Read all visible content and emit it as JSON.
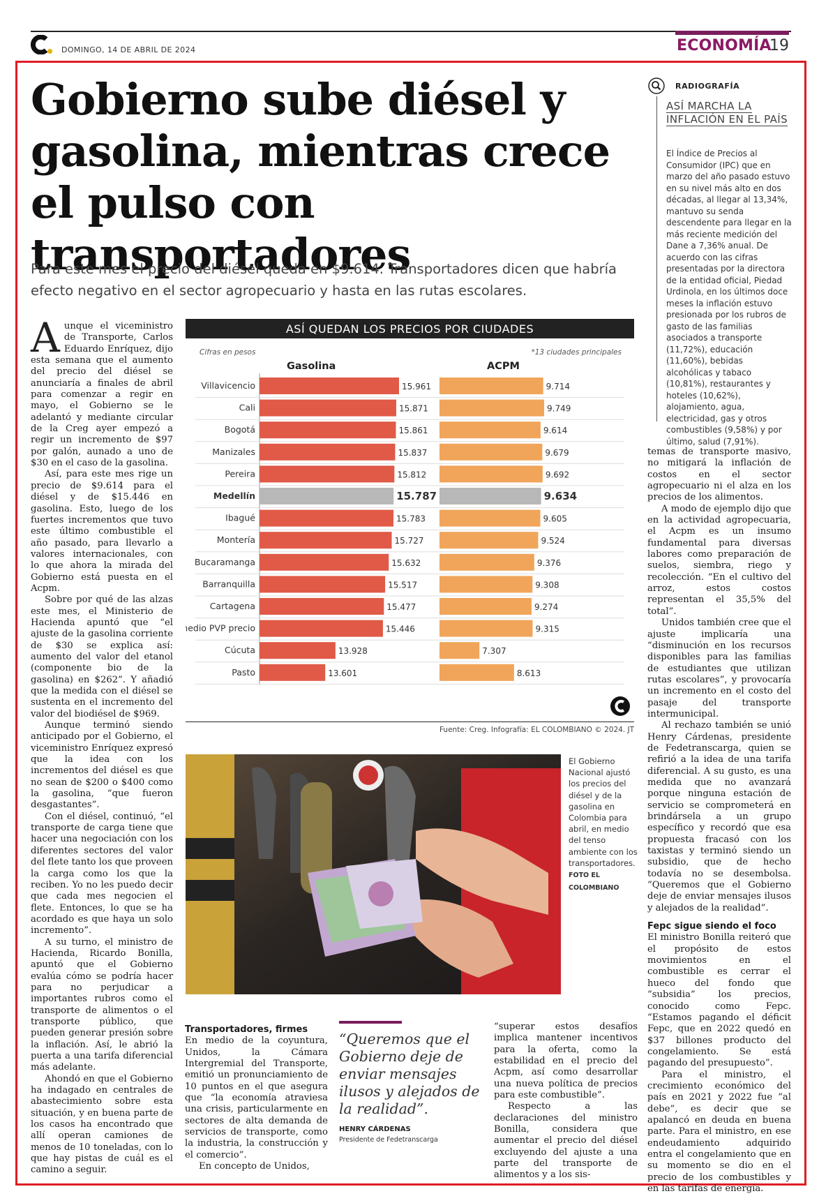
{
  "header": {
    "date": "DOMINGO, 14 DE ABRIL DE 2024",
    "section": "ECONOMÍA",
    "page": "19",
    "brand_color": "#8b1a63"
  },
  "article": {
    "headline": "Gobierno sube diésel y gasolina, mientras crece el pulso con transportadores",
    "deck": "Para este mes el precio del diésel queda en $9.614. Transportadores dicen que habría efecto negativo en el sector agropecuario y hasta en las rutas escolares.",
    "col1": {
      "dropcap": "A",
      "p1": "unque el viceministro de Transporte, Carlos Eduardo Enríquez, dijo esta semana que el aumento del precio del diésel se anunciaría a finales de abril para comenzar a regir en mayo, el Gobierno se le adelantó y mediante circular de la Creg ayer empezó a regir un incremento de $97 por galón, aunado a uno de $30 en el caso de la gasolina.",
      "p2": "Así, para este mes rige un precio de $9.614 para el diésel y de $15.446 en gasolina. Esto, luego de los fuertes incrementos que tuvo este último combustible el año pasado, para llevarlo a valores internacionales, con lo que ahora la mirada del Gobierno está puesta en el Acpm.",
      "p3": "Sobre por qué de las alzas este mes, el Ministerio de Hacienda apuntó que “el ajuste de la gasolina corriente de $30 se explica así: aumento del valor del etanol (componente bio de la gasolina) en $262”. Y añadió que la medida con el diésel se sustenta en el incremento del valor del biodiésel de $969.",
      "p4": "Aunque terminó siendo anticipado por el Gobierno, el viceministro Enríquez expresó que la idea con los incrementos del diésel es que no sean de $200 o $400 como la gasolina, “que fueron desgastantes”.",
      "p5": "Con el diésel, continuó, “el transporte de carga tiene que hacer una negociación con los diferentes sectores del valor del flete tanto los que proveen la carga como los que la reciben. Yo no les puedo decir que cada mes negocien el flete. Entonces, lo que se ha acordado es que haya un solo incremento”.",
      "p6": "A su turno, el ministro de Hacienda, Ricardo Bonilla, apuntó que el Gobierno evalúa cómo se podría hacer para no perjudicar a importantes rubros como el transporte de alimentos o el transporte público, que pueden generar presión sobre la inflación. Así, le abrió la puerta a una tarifa diferencial más adelante.",
      "p7": "Ahondó en que el Gobierno ha indagado en centrales de abastecimiento sobre esta situación, y en buena parte de los casos ha encontrado que allí operan camiones de menos de 10 toneladas, con lo que hay pistas de cuál es el camino a seguir."
    },
    "col2": {
      "subhead": "Transportadores, firmes",
      "p1": "En medio de la coyuntura, Unidos, la Cámara Intergremial del Transporte, emitió un pronunciamiento de 10 puntos en el que asegura que “la economía atraviesa una crisis, particularmente en sectores de alta demanda de servicios de transporte, como la industria, la construcción y el comercio”.",
      "p2": "En concepto de Unidos,"
    },
    "col3": {
      "p1": "“superar estos desafíos implica mantener incentivos para la oferta, como la estabilidad en el precio del Acpm, así como desarrollar una nueva política de precios para este combustible”.",
      "p2": "Respecto a las declaraciones del ministro Bonilla, considera que aumentar el precio del diésel excluyendo del ajuste a una parte del transporte de alimentos y a los sis-"
    },
    "col4": {
      "p1": "temas de transporte masivo, no mitigará la inflación de costos en el sector agropecuario ni el alza en los precios de los alimentos.",
      "p2": "A modo de ejemplo dijo que en la actividad agropecuaria, el Acpm es un insumo fundamental para diversas labores como preparación de suelos, siembra, riego y recolección. “En el cultivo del arroz, estos costos representan el 35,5% del total”.",
      "p3": "Unidos también cree que el ajuste implicaría una “disminución en los recursos disponibles para las familias de estudiantes que utilizan rutas escolares”, y provocaría un incremento en el costo del pasaje del transporte intermunicipal.",
      "p4": "Al rechazo también se unió Henry Cárdenas, presidente de Fedetranscarga, quien se refirió a la idea de una tarifa diferencial. A su gusto, es una medida que no avanzará porque ninguna estación de servicio se comprometerá en brindársela a un grupo específico y recordó que esa propuesta fracasó con los taxistas y terminó siendo un subsidio, que de hecho todavía no se desembolsa. “Queremos que el Gobierno deje de enviar mensajes ilusos y alejados de la realidad”.",
      "subhead": "Fepc sigue siendo el foco",
      "p5": "El ministro Bonilla reiteró que el propósito de estos movimientos en el combustible es cerrar el hueco del fondo que “subsidia” los precios, conocido como Fepc. “Estamos pagando el déficit Fepc, que en 2022 quedó en $37 billones producto del congelamiento. Se está pagando del presupuesto”.",
      "p6": "Para el ministro, el crecimiento económico del país en 2021 y 2022 fue “al debe”, es decir que se apalancó en deuda en buena parte. Para el ministro, en ese endeudamiento adquirido entra el congelamiento que en su momento se dio en el precio de los combustibles y en las tarifas de energía."
    }
  },
  "sidebar": {
    "kicker": "RADIOGRAFÍA",
    "title_line1": "ASÍ MARCHA LA",
    "title_line2": "INFLACIÓN EN EL PAÍS",
    "text": "El Índice de Precios al Consumidor (IPC) que en marzo del año pasado estuvo en su nivel más alto en dos décadas, al llegar al 13,34%, mantuvo su senda descendente para llegar en la más reciente medición del Dane a 7,36% anual. De acuerdo con las cifras presentadas por la directora de la entidad oficial, Piedad Urdinola, en los últimos doce meses la inflación estuvo presionada por los rubros de gasto de las familias asociados a transporte (11,72%), educación (11,60%), bebidas alcohólicas y tabaco (10,81%), restaurantes y hoteles (10,62%), alojamiento, agua, electricidad, gas y otros combustibles (9,58%) y por último, salud (7,91%)."
  },
  "chart": {
    "title": "ASÍ QUEDAN LOS PRECIOS POR CIUDADES",
    "units": "Cifras en pesos",
    "note": "*13 ciudades principales",
    "source": "Fuente: Creg. Infografía: EL COLOMBIANO © 2024. JT"
  },
  "chart_data": {
    "type": "bar",
    "orientation": "horizontal",
    "categories": [
      "Villavicencio",
      "Cali",
      "Bogotá",
      "Manizales",
      "Pereira",
      "Medellín",
      "Ibagué",
      "Montería",
      "Bucaramanga",
      "Barranquilla",
      "Cartagena",
      "*Promedio PVP precio",
      "Cúcuta",
      "Pasto"
    ],
    "series": [
      {
        "name": "Gasolina",
        "values": [
          15961,
          15871,
          15861,
          15837,
          15812,
          15787,
          15783,
          15727,
          15632,
          15517,
          15477,
          15446,
          13928,
          13601
        ],
        "labels": [
          "15.961",
          "15.871",
          "15.861",
          "15.837",
          "15.812",
          "15.787",
          "15.783",
          "15.727",
          "15.632",
          "15.517",
          "15.477",
          "15.446",
          "13.928",
          "13.601"
        ],
        "color": "#e05a47"
      },
      {
        "name": "ACPM",
        "values": [
          9714,
          9749,
          9614,
          9679,
          9692,
          9634,
          9605,
          9524,
          9376,
          9308,
          9274,
          9315,
          7307,
          8613
        ],
        "labels": [
          "9.714",
          "9.749",
          "9.614",
          "9.679",
          "9.692",
          "9.634",
          "9.605",
          "9.524",
          "9.376",
          "9.308",
          "9.274",
          "9.315",
          "7.307",
          "8.613"
        ],
        "color": "#f0a55a"
      }
    ],
    "highlight": "Medellín",
    "highlight_color": "#b8b8b8"
  },
  "photo": {
    "caption": "El Gobierno Nacional ajustó los precios del diésel y de la gasolina en Colombia para abril, en medio del tenso ambiente con los transportadores.",
    "credit": "FOTO EL COLOMBIANO"
  },
  "quote": {
    "text": "“Queremos que el Gobierno deje de enviar mensajes ilusos y alejados de la realidad”.",
    "author": "HENRY CÁRDENAS",
    "role": "Presidente de Fedetranscarga"
  }
}
